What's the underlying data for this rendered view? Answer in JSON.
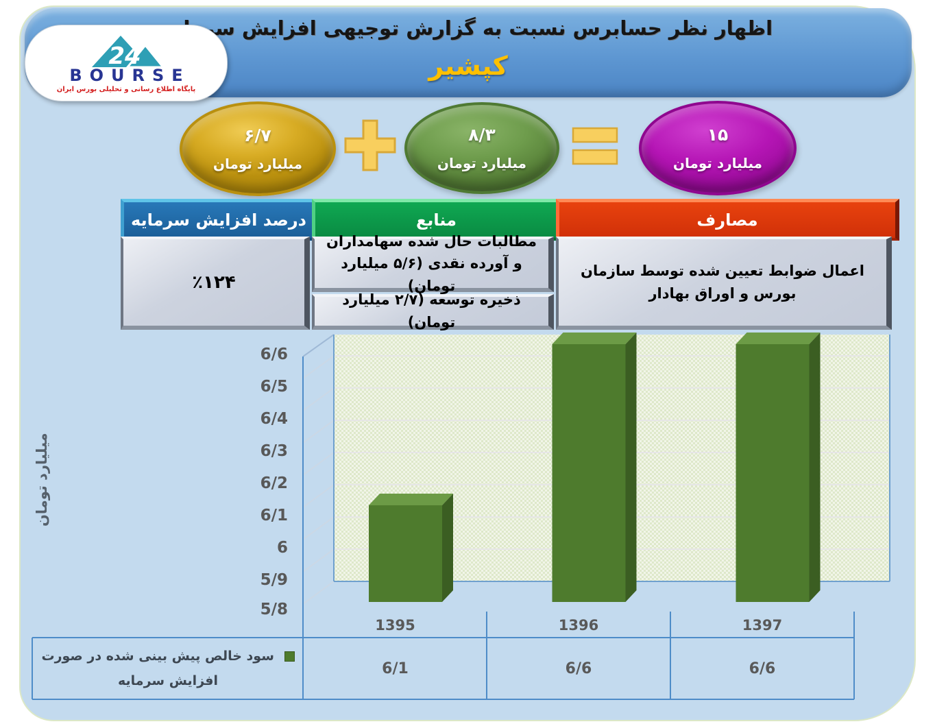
{
  "header": {
    "title": "اظهار نظر حسابرس نسبت به گزارش توجیهی افزایش سرمایه",
    "company": "کپشیر"
  },
  "logo": {
    "brand": "BOURSE",
    "mark": "24",
    "tagline": "پایگاه اطلاع رسانی و تحلیلی بورس ایران"
  },
  "equation": {
    "a": {
      "value": "۶/۷",
      "unit": "میلیارد تومان",
      "color": "#BC9210"
    },
    "plus": "+",
    "b": {
      "value": "۸/۳",
      "unit": "میلیارد تومان",
      "color": "#5E8C3E"
    },
    "equals": "=",
    "result": {
      "value": "۱۵",
      "unit": "میلیارد تومان",
      "color": "#A80DA8"
    },
    "operator_color": "#F8CF5E"
  },
  "info_table": {
    "columns": [
      {
        "key": "uses",
        "header": "مصارف",
        "header_color": "#DD3A0C",
        "cells": [
          "اعمال ضوابط تعیین شده توسط سازمان بورس و اوراق بهادار"
        ]
      },
      {
        "key": "sources",
        "header": "منابع",
        "header_color": "#0C9C4A",
        "cells": [
          "مطالبات حال شده سهامداران و آورده نقدی (۵/۶ میلیارد تومان)",
          "ذخیره توسعه (۲/۷ میلیارد تومان)"
        ]
      },
      {
        "key": "percent",
        "header": "درصد افزایش سرمایه",
        "header_color": "#2173B3",
        "cells": [
          "٪۱۲۴"
        ]
      }
    ]
  },
  "chart_data": {
    "type": "bar",
    "title": "",
    "categories": [
      "1395",
      "1396",
      "1397"
    ],
    "series": [
      {
        "name": "سود خالص پیش بینی شده در صورت افزایش سرمایه",
        "values": [
          6.1,
          6.6,
          6.6
        ],
        "display_values": [
          "6/1",
          "6/6",
          "6/6"
        ],
        "color": "#4E7B2D"
      }
    ],
    "ylabel": "میلیارد تومان",
    "ylim": [
      5.8,
      6.7
    ],
    "ytick_step": 0.1,
    "ytick_labels_bottom_to_top": [
      "5/8",
      "5/9",
      "6",
      "6/1",
      "6/2",
      "6/3",
      "6/4",
      "6/5",
      "6/6"
    ],
    "grid": true,
    "legend_position": "bottom-left",
    "plot_bg": "#F1F5E8",
    "axis_color": "#4E8CC8",
    "bar_face_colors": {
      "front": "#4E7B2D",
      "top": "#6C9B46",
      "side": "#3B5E22"
    }
  }
}
